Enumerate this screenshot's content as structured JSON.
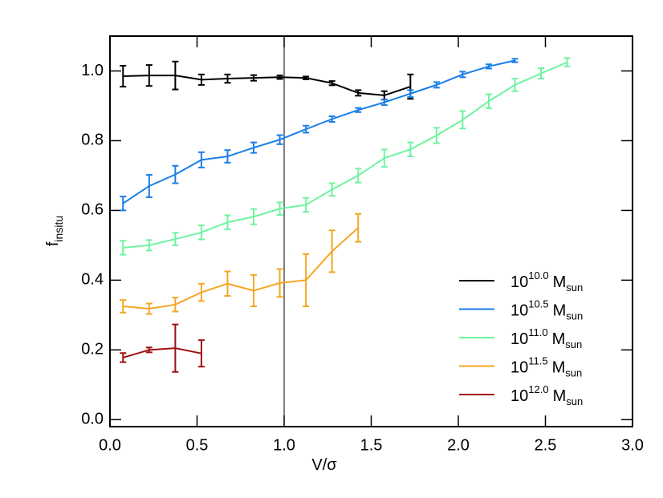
{
  "chart_data": {
    "type": "line",
    "xlabel": "V/σ",
    "ylabel": [
      "f",
      "insitu"
    ],
    "xlim": [
      0,
      3
    ],
    "ylim": [
      -0.02,
      1.1
    ],
    "xticks": [
      {
        "value": 0,
        "label": "0.0"
      },
      {
        "value": 0.5,
        "label": "0.5"
      },
      {
        "value": 1,
        "label": "1.0"
      },
      {
        "value": 1.5,
        "label": "1.5"
      },
      {
        "value": 2,
        "label": "2.0"
      },
      {
        "value": 2.5,
        "label": "2.5"
      },
      {
        "value": 3,
        "label": "3.0"
      }
    ],
    "yticks": [
      {
        "value": 0,
        "label": "0.0"
      },
      {
        "value": 0.2,
        "label": "0.2"
      },
      {
        "value": 0.4,
        "label": "0.4"
      },
      {
        "value": 0.6,
        "label": "0.6"
      },
      {
        "value": 0.8,
        "label": "0.8"
      },
      {
        "value": 1,
        "label": "1.0"
      }
    ],
    "vline": 1,
    "legend": "lower right",
    "series": [
      {
        "name": [
          "10",
          "10.0",
          "M",
          "sun"
        ],
        "color": "#000000",
        "x": [
          0.075,
          0.225,
          0.375,
          0.525,
          0.675,
          0.825,
          0.975,
          1.125,
          1.275,
          1.425,
          1.575,
          1.725
        ],
        "values": [
          0.985,
          0.987,
          0.987,
          0.975,
          0.978,
          0.98,
          0.982,
          0.98,
          0.965,
          0.937,
          0.93,
          0.955
        ],
        "errors": [
          0.03,
          0.03,
          0.04,
          0.015,
          0.012,
          0.008,
          0.005,
          0.004,
          0.006,
          0.008,
          0.012,
          0.035
        ]
      },
      {
        "name": [
          "10",
          "10.5",
          "M",
          "sun"
        ],
        "color": "#1a7ee8",
        "x": [
          0.075,
          0.225,
          0.375,
          0.525,
          0.675,
          0.825,
          0.975,
          1.125,
          1.275,
          1.425,
          1.575,
          1.725,
          1.875,
          2.025,
          2.175,
          2.325
        ],
        "values": [
          0.62,
          0.67,
          0.703,
          0.745,
          0.755,
          0.78,
          0.803,
          0.833,
          0.862,
          0.888,
          0.91,
          0.935,
          0.96,
          0.99,
          1.013,
          1.03
        ],
        "errors": [
          0.02,
          0.032,
          0.025,
          0.022,
          0.018,
          0.015,
          0.013,
          0.01,
          0.008,
          0.006,
          0.008,
          0.01,
          0.008,
          0.008,
          0.006,
          0.005
        ]
      },
      {
        "name": [
          "10",
          "11.0",
          "M",
          "sun"
        ],
        "color": "#6ff3a0",
        "x": [
          0.075,
          0.225,
          0.375,
          0.525,
          0.675,
          0.825,
          0.975,
          1.125,
          1.275,
          1.425,
          1.575,
          1.725,
          1.875,
          2.025,
          2.175,
          2.325,
          2.475,
          2.625
        ],
        "values": [
          0.493,
          0.5,
          0.518,
          0.537,
          0.566,
          0.582,
          0.605,
          0.616,
          0.66,
          0.7,
          0.75,
          0.775,
          0.815,
          0.86,
          0.913,
          0.96,
          0.993,
          1.025
        ],
        "errors": [
          0.02,
          0.015,
          0.018,
          0.02,
          0.02,
          0.022,
          0.018,
          0.02,
          0.018,
          0.02,
          0.025,
          0.02,
          0.022,
          0.025,
          0.02,
          0.018,
          0.015,
          0.012
        ]
      },
      {
        "name": [
          "10",
          "11.5",
          "M",
          "sun"
        ],
        "color": "#f5a623",
        "x": [
          0.075,
          0.225,
          0.375,
          0.525,
          0.675,
          0.825,
          0.975,
          1.125,
          1.275,
          1.425
        ],
        "values": [
          0.325,
          0.318,
          0.33,
          0.365,
          0.39,
          0.37,
          0.392,
          0.4,
          0.483,
          0.55
        ],
        "errors": [
          0.018,
          0.015,
          0.02,
          0.025,
          0.035,
          0.045,
          0.04,
          0.075,
          0.06,
          0.04
        ]
      },
      {
        "name": [
          "10",
          "12.0",
          "M",
          "sun"
        ],
        "color": "#a01010",
        "x": [
          0.075,
          0.225,
          0.375,
          0.525
        ],
        "values": [
          0.178,
          0.2,
          0.205,
          0.19
        ],
        "errors": [
          0.013,
          0.007,
          0.068,
          0.038
        ]
      }
    ]
  }
}
